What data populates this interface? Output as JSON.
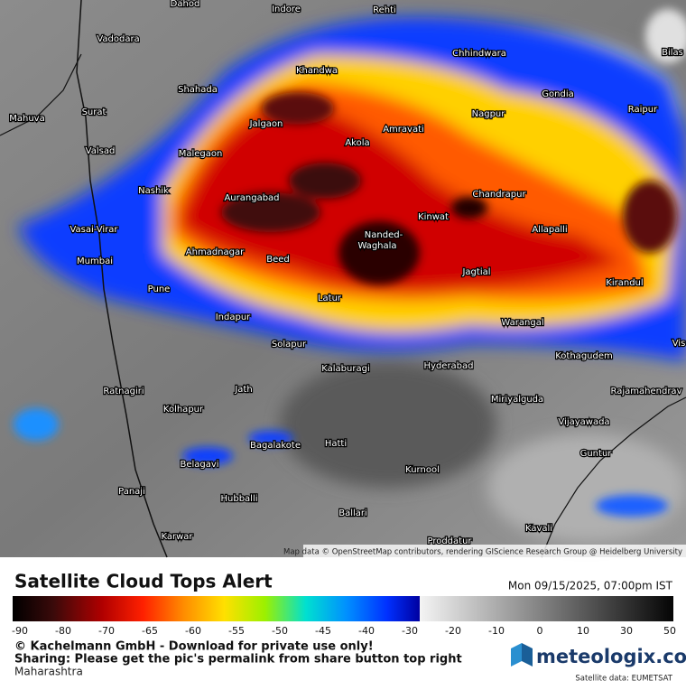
{
  "map": {
    "cities": [
      "Dahod",
      "Indore",
      "Rehti",
      "Vadodara",
      "Chhindwara",
      "Bilas",
      "Khandwa",
      "Shahada",
      "Gondia",
      "Surat",
      "Mahuva",
      "Nagpur",
      "Raipur",
      "Jalgaon",
      "Amravati",
      "Akola",
      "Valsad",
      "Malegaon",
      "Nashik",
      "Aurangabad",
      "Chandrapur",
      "Kinwat",
      "Vasai-Virar",
      "Nanded-",
      "Waghala",
      "Allapalli",
      "Ahmadnagar",
      "Mumbai",
      "Beed",
      "Jagtial",
      "Pune",
      "Kirandul",
      "Latur",
      "Indapur",
      "Warangal",
      "Vis",
      "Solapur",
      "Kothagudem",
      "Kalaburagi",
      "Hyderabad",
      "Ratnagiri",
      "Jath",
      "Rajamahendrav",
      "Miriyalguda",
      "Kolhapur",
      "Vijayawada",
      "Hatti",
      "Bagalakote",
      "Guntur",
      "Belagavi",
      "Kurnool",
      "Panaji",
      "Hubballi",
      "Ballari",
      "Karwar",
      "Kavali",
      "Proddatur"
    ],
    "attribution": "Map data © OpenStreetMap contributors, rendering GIScience Research Group @ Heidelberg University"
  },
  "legend": {
    "title": "Satellite Cloud Tops Alert",
    "timestamp": "Mon 09/15/2025, 07:00pm IST",
    "ticks": [
      -90,
      -80,
      -70,
      -65,
      -60,
      -55,
      -50,
      -45,
      -40,
      -30,
      -20,
      -10,
      0,
      10,
      30,
      50
    ]
  },
  "footer": {
    "copyright": "© Kachelmann GmbH - Download for private use only!",
    "sharing": "Sharing: Please get the pic's permalink from share button top right",
    "region": "Maharashtra",
    "logo": "meteologix.com",
    "source": "Satellite data: EUMETSAT"
  }
}
